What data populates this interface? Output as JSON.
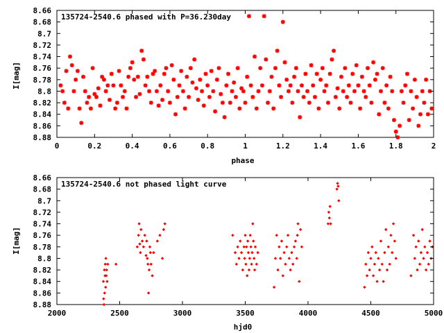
{
  "chart_data": [
    {
      "type": "scatter",
      "title": "135724-2540.6 phased with P=36.230day",
      "xlabel": "phase",
      "ylabel": "I[mag]",
      "xlim": [
        0,
        2
      ],
      "ylim": [
        8.88,
        8.66
      ],
      "y_inverted": true,
      "x_ticks": [
        0,
        0.2,
        0.4,
        0.6,
        0.8,
        1,
        1.2,
        1.4,
        1.6,
        1.8,
        2
      ],
      "x_tick_labels": [
        "0",
        "0.2",
        "0.4",
        "0.6",
        "0.8",
        "1",
        "1.2",
        "1.4",
        "1.6",
        "1.8",
        "2"
      ],
      "y_ticks": [
        8.66,
        8.68,
        8.7,
        8.72,
        8.74,
        8.76,
        8.78,
        8.8,
        8.82,
        8.84,
        8.86,
        8.88
      ],
      "y_tick_labels": [
        "8.66",
        "8.68",
        "8.7",
        "8.72",
        "8.74",
        "8.76",
        "8.78",
        "8.8",
        "8.82",
        "8.84",
        "8.86",
        "8.88"
      ],
      "color": "#ff0000",
      "marker": "star",
      "points": [
        [
          0.02,
          8.79
        ],
        [
          0.03,
          8.8
        ],
        [
          0.04,
          8.82
        ],
        [
          0.05,
          8.765
        ],
        [
          0.06,
          8.83
        ],
        [
          0.07,
          8.74
        ],
        [
          0.08,
          8.755
        ],
        [
          0.09,
          8.8
        ],
        [
          0.1,
          8.78
        ],
        [
          0.11,
          8.765
        ],
        [
          0.12,
          8.83
        ],
        [
          0.13,
          8.855
        ],
        [
          0.14,
          8.775
        ],
        [
          0.15,
          8.8
        ],
        [
          0.16,
          8.82
        ],
        [
          0.17,
          8.81
        ],
        [
          0.18,
          8.83
        ],
        [
          0.19,
          8.76
        ],
        [
          0.2,
          8.805
        ],
        [
          0.21,
          8.81
        ],
        [
          0.22,
          8.795
        ],
        [
          0.23,
          8.825
        ],
        [
          0.24,
          8.775
        ],
        [
          0.25,
          8.78
        ],
        [
          0.26,
          8.8
        ],
        [
          0.27,
          8.79
        ],
        [
          0.28,
          8.815
        ],
        [
          0.29,
          8.77
        ],
        [
          0.3,
          8.79
        ],
        [
          0.31,
          8.83
        ],
        [
          0.32,
          8.82
        ],
        [
          0.33,
          8.765
        ],
        [
          0.34,
          8.79
        ],
        [
          0.35,
          8.81
        ],
        [
          0.36,
          8.8
        ],
        [
          0.37,
          8.83
        ],
        [
          0.38,
          8.775
        ],
        [
          0.39,
          8.76
        ],
        [
          0.4,
          8.75
        ],
        [
          0.41,
          8.78
        ],
        [
          0.42,
          8.81
        ],
        [
          0.43,
          8.775
        ],
        [
          0.44,
          8.805
        ],
        [
          0.45,
          8.73
        ],
        [
          0.46,
          8.745
        ],
        [
          0.47,
          8.79
        ],
        [
          0.48,
          8.775
        ],
        [
          0.49,
          8.8
        ],
        [
          0.5,
          8.82
        ],
        [
          0.51,
          8.77
        ],
        [
          0.52,
          8.765
        ],
        [
          0.53,
          8.8
        ],
        [
          0.54,
          8.825
        ],
        [
          0.55,
          8.79
        ],
        [
          0.56,
          8.815
        ],
        [
          0.57,
          8.77
        ],
        [
          0.58,
          8.76
        ],
        [
          0.59,
          8.8
        ],
        [
          0.6,
          8.82
        ],
        [
          0.61,
          8.755
        ],
        [
          0.62,
          8.78
        ],
        [
          0.63,
          8.84
        ],
        [
          0.64,
          8.81
        ],
        [
          0.65,
          8.79
        ],
        [
          0.66,
          8.765
        ],
        [
          0.67,
          8.8
        ],
        [
          0.68,
          8.83
        ],
        [
          0.69,
          8.775
        ],
        [
          0.7,
          8.81
        ],
        [
          0.71,
          8.76
        ],
        [
          0.72,
          8.785
        ],
        [
          0.73,
          8.745
        ],
        [
          0.74,
          8.795
        ],
        [
          0.75,
          8.815
        ],
        [
          0.76,
          8.78
        ],
        [
          0.77,
          8.8
        ],
        [
          0.78,
          8.825
        ],
        [
          0.79,
          8.77
        ],
        [
          0.8,
          8.79
        ],
        [
          0.81,
          8.81
        ],
        [
          0.82,
          8.765
        ],
        [
          0.83,
          8.8
        ],
        [
          0.84,
          8.835
        ],
        [
          0.85,
          8.78
        ],
        [
          0.86,
          8.76
        ],
        [
          0.87,
          8.805
        ],
        [
          0.88,
          8.82
        ],
        [
          0.89,
          8.845
        ],
        [
          0.9,
          8.79
        ],
        [
          0.91,
          8.77
        ],
        [
          0.92,
          8.82
        ],
        [
          0.93,
          8.8
        ],
        [
          0.94,
          8.785
        ],
        [
          0.95,
          8.81
        ],
        [
          0.96,
          8.76
        ],
        [
          0.97,
          8.83
        ],
        [
          0.98,
          8.795
        ],
        [
          0.99,
          8.8
        ],
        [
          1.0,
          8.82
        ],
        [
          1.01,
          8.775
        ],
        [
          1.02,
          8.67
        ],
        [
          1.03,
          8.79
        ],
        [
          1.04,
          8.81
        ],
        [
          1.05,
          8.74
        ],
        [
          1.06,
          8.83
        ],
        [
          1.07,
          8.8
        ],
        [
          1.08,
          8.76
        ],
        [
          1.09,
          8.79
        ],
        [
          1.1,
          8.67
        ],
        [
          1.11,
          8.745
        ],
        [
          1.12,
          8.82
        ],
        [
          1.13,
          8.8
        ],
        [
          1.14,
          8.775
        ],
        [
          1.15,
          8.83
        ],
        [
          1.16,
          8.76
        ],
        [
          1.17,
          8.73
        ],
        [
          1.18,
          8.79
        ],
        [
          1.19,
          8.81
        ],
        [
          1.2,
          8.68
        ],
        [
          1.21,
          8.75
        ],
        [
          1.22,
          8.78
        ],
        [
          1.23,
          8.8
        ],
        [
          1.24,
          8.79
        ],
        [
          1.25,
          8.82
        ],
        [
          1.26,
          8.775
        ],
        [
          1.27,
          8.76
        ],
        [
          1.28,
          8.8
        ],
        [
          1.29,
          8.845
        ],
        [
          1.3,
          8.79
        ],
        [
          1.31,
          8.81
        ],
        [
          1.32,
          8.77
        ],
        [
          1.33,
          8.8
        ],
        [
          1.34,
          8.82
        ],
        [
          1.35,
          8.755
        ],
        [
          1.36,
          8.79
        ],
        [
          1.37,
          8.81
        ],
        [
          1.38,
          8.77
        ],
        [
          1.39,
          8.83
        ],
        [
          1.4,
          8.78
        ],
        [
          1.41,
          8.76
        ],
        [
          1.42,
          8.8
        ],
        [
          1.43,
          8.79
        ],
        [
          1.44,
          8.82
        ],
        [
          1.45,
          8.77
        ],
        [
          1.46,
          8.745
        ],
        [
          1.47,
          8.73
        ],
        [
          1.48,
          8.81
        ],
        [
          1.49,
          8.795
        ],
        [
          1.5,
          8.83
        ],
        [
          1.51,
          8.775
        ],
        [
          1.52,
          8.8
        ],
        [
          1.53,
          8.76
        ],
        [
          1.54,
          8.81
        ],
        [
          1.55,
          8.79
        ],
        [
          1.56,
          8.82
        ],
        [
          1.57,
          8.77
        ],
        [
          1.58,
          8.8
        ],
        [
          1.59,
          8.755
        ],
        [
          1.6,
          8.79
        ],
        [
          1.61,
          8.83
        ],
        [
          1.62,
          8.775
        ],
        [
          1.63,
          8.8
        ],
        [
          1.64,
          8.81
        ],
        [
          1.65,
          8.76
        ],
        [
          1.66,
          8.79
        ],
        [
          1.67,
          8.82
        ],
        [
          1.68,
          8.75
        ],
        [
          1.69,
          8.78
        ],
        [
          1.7,
          8.77
        ],
        [
          1.71,
          8.84
        ],
        [
          1.72,
          8.8
        ],
        [
          1.73,
          8.76
        ],
        [
          1.74,
          8.82
        ],
        [
          1.75,
          8.79
        ],
        [
          1.76,
          8.83
        ],
        [
          1.77,
          8.775
        ],
        [
          1.78,
          8.8
        ],
        [
          1.79,
          8.85
        ],
        [
          1.8,
          8.87
        ],
        [
          1.81,
          8.88
        ],
        [
          1.82,
          8.86
        ],
        [
          1.83,
          8.8
        ],
        [
          1.84,
          8.82
        ],
        [
          1.85,
          8.79
        ],
        [
          1.86,
          8.77
        ],
        [
          1.87,
          8.85
        ],
        [
          1.88,
          8.8
        ],
        [
          1.89,
          8.83
        ],
        [
          1.9,
          8.78
        ],
        [
          1.91,
          8.81
        ],
        [
          1.92,
          8.86
        ],
        [
          1.93,
          8.84
        ],
        [
          1.94,
          8.8
        ],
        [
          1.95,
          8.82
        ],
        [
          1.96,
          8.78
        ],
        [
          1.97,
          8.84
        ],
        [
          1.98,
          8.8
        ],
        [
          1.99,
          8.83
        ]
      ]
    },
    {
      "type": "scatter",
      "title": "135724-2540.6 not phased light curve",
      "xlabel": "hjd0",
      "ylabel": "I[mag]",
      "xlim": [
        2000,
        5000
      ],
      "ylim": [
        8.88,
        8.66
      ],
      "y_inverted": true,
      "x_ticks": [
        2000,
        2500,
        3000,
        3500,
        4000,
        4500,
        5000
      ],
      "x_tick_labels": [
        "2000",
        "2500",
        "3000",
        "3500",
        "4000",
        "4500",
        "5000"
      ],
      "y_ticks": [
        8.66,
        8.68,
        8.7,
        8.72,
        8.74,
        8.76,
        8.78,
        8.8,
        8.82,
        8.84,
        8.86,
        8.88
      ],
      "y_tick_labels": [
        "8.66",
        "8.68",
        "8.7",
        "8.72",
        "8.74",
        "8.76",
        "8.78",
        "8.8",
        "8.82",
        "8.84",
        "8.86",
        "8.88"
      ],
      "color": "#ff0000",
      "marker": "diamond",
      "points": [
        [
          2370,
          8.84
        ],
        [
          2372,
          8.87
        ],
        [
          2375,
          8.88
        ],
        [
          2378,
          8.82
        ],
        [
          2380,
          8.86
        ],
        [
          2383,
          8.83
        ],
        [
          2385,
          8.81
        ],
        [
          2388,
          8.85
        ],
        [
          2390,
          8.8
        ],
        [
          2393,
          8.83
        ],
        [
          2396,
          8.82
        ],
        [
          2400,
          8.84
        ],
        [
          2405,
          8.81
        ],
        [
          2470,
          8.81
        ],
        [
          2640,
          8.78
        ],
        [
          2650,
          8.76
        ],
        [
          2655,
          8.74
        ],
        [
          2660,
          8.775
        ],
        [
          2665,
          8.79
        ],
        [
          2670,
          8.75
        ],
        [
          2680,
          8.77
        ],
        [
          2690,
          8.78
        ],
        [
          2700,
          8.76
        ],
        [
          2710,
          8.795
        ],
        [
          2715,
          8.77
        ],
        [
          2720,
          8.8
        ],
        [
          2725,
          8.81
        ],
        [
          2730,
          8.86
        ],
        [
          2735,
          8.82
        ],
        [
          2740,
          8.78
        ],
        [
          2745,
          8.79
        ],
        [
          2750,
          8.81
        ],
        [
          2760,
          8.83
        ],
        [
          2770,
          8.79
        ],
        [
          2800,
          8.77
        ],
        [
          2820,
          8.76
        ],
        [
          2840,
          8.8
        ],
        [
          2850,
          8.75
        ],
        [
          2860,
          8.74
        ],
        [
          3400,
          8.76
        ],
        [
          3420,
          8.79
        ],
        [
          3430,
          8.81
        ],
        [
          3440,
          8.78
        ],
        [
          3450,
          8.8
        ],
        [
          3460,
          8.77
        ],
        [
          3470,
          8.79
        ],
        [
          3480,
          8.82
        ],
        [
          3490,
          8.78
        ],
        [
          3495,
          8.8
        ],
        [
          3500,
          8.76
        ],
        [
          3505,
          8.81
        ],
        [
          3510,
          8.78
        ],
        [
          3515,
          8.83
        ],
        [
          3520,
          8.77
        ],
        [
          3525,
          8.79
        ],
        [
          3530,
          8.82
        ],
        [
          3535,
          8.8
        ],
        [
          3540,
          8.76
        ],
        [
          3545,
          8.78
        ],
        [
          3550,
          8.81
        ],
        [
          3555,
          8.79
        ],
        [
          3560,
          8.74
        ],
        [
          3565,
          8.77
        ],
        [
          3570,
          8.8
        ],
        [
          3575,
          8.82
        ],
        [
          3580,
          8.78
        ],
        [
          3590,
          8.81
        ],
        [
          3600,
          8.79
        ],
        [
          3730,
          8.85
        ],
        [
          3740,
          8.8
        ],
        [
          3750,
          8.76
        ],
        [
          3760,
          8.82
        ],
        [
          3770,
          8.78
        ],
        [
          3780,
          8.8
        ],
        [
          3790,
          8.77
        ],
        [
          3800,
          8.83
        ],
        [
          3810,
          8.79
        ],
        [
          3820,
          8.81
        ],
        [
          3830,
          8.78
        ],
        [
          3840,
          8.76
        ],
        [
          3850,
          8.8
        ],
        [
          3860,
          8.82
        ],
        [
          3870,
          8.79
        ],
        [
          3880,
          8.81
        ],
        [
          3890,
          8.78
        ],
        [
          3900,
          8.77
        ],
        [
          3910,
          8.8
        ],
        [
          3915,
          8.76
        ],
        [
          3920,
          8.74
        ],
        [
          3930,
          8.84
        ],
        [
          3940,
          8.75
        ],
        [
          3950,
          8.78
        ],
        [
          4160,
          8.74
        ],
        [
          4165,
          8.72
        ],
        [
          4170,
          8.73
        ],
        [
          4175,
          8.71
        ],
        [
          4180,
          8.74
        ],
        [
          4230,
          8.68
        ],
        [
          4235,
          8.67
        ],
        [
          4240,
          8.675
        ],
        [
          4245,
          8.7
        ],
        [
          4450,
          8.85
        ],
        [
          4460,
          8.81
        ],
        [
          4470,
          8.83
        ],
        [
          4480,
          8.79
        ],
        [
          4490,
          8.82
        ],
        [
          4500,
          8.8
        ],
        [
          4510,
          8.78
        ],
        [
          4520,
          8.83
        ],
        [
          4530,
          8.81
        ],
        [
          4540,
          8.79
        ],
        [
          4550,
          8.84
        ],
        [
          4560,
          8.8
        ],
        [
          4570,
          8.82
        ],
        [
          4580,
          8.77
        ],
        [
          4590,
          8.81
        ],
        [
          4600,
          8.84
        ],
        [
          4610,
          8.79
        ],
        [
          4620,
          8.75
        ],
        [
          4630,
          8.82
        ],
        [
          4640,
          8.78
        ],
        [
          4650,
          8.81
        ],
        [
          4660,
          8.76
        ],
        [
          4670,
          8.79
        ],
        [
          4680,
          8.74
        ],
        [
          4690,
          8.77
        ],
        [
          4700,
          8.8
        ],
        [
          4820,
          8.83
        ],
        [
          4840,
          8.76
        ],
        [
          4850,
          8.8
        ],
        [
          4860,
          8.78
        ],
        [
          4870,
          8.82
        ],
        [
          4880,
          8.77
        ],
        [
          4890,
          8.81
        ],
        [
          4900,
          8.79
        ],
        [
          4910,
          8.75
        ],
        [
          4920,
          8.8
        ],
        [
          4930,
          8.78
        ],
        [
          4940,
          8.82
        ],
        [
          4950,
          8.79
        ],
        [
          4960,
          8.81
        ],
        [
          4970,
          8.77
        ],
        [
          4980,
          8.8
        ],
        [
          4990,
          8.78
        ]
      ]
    }
  ]
}
